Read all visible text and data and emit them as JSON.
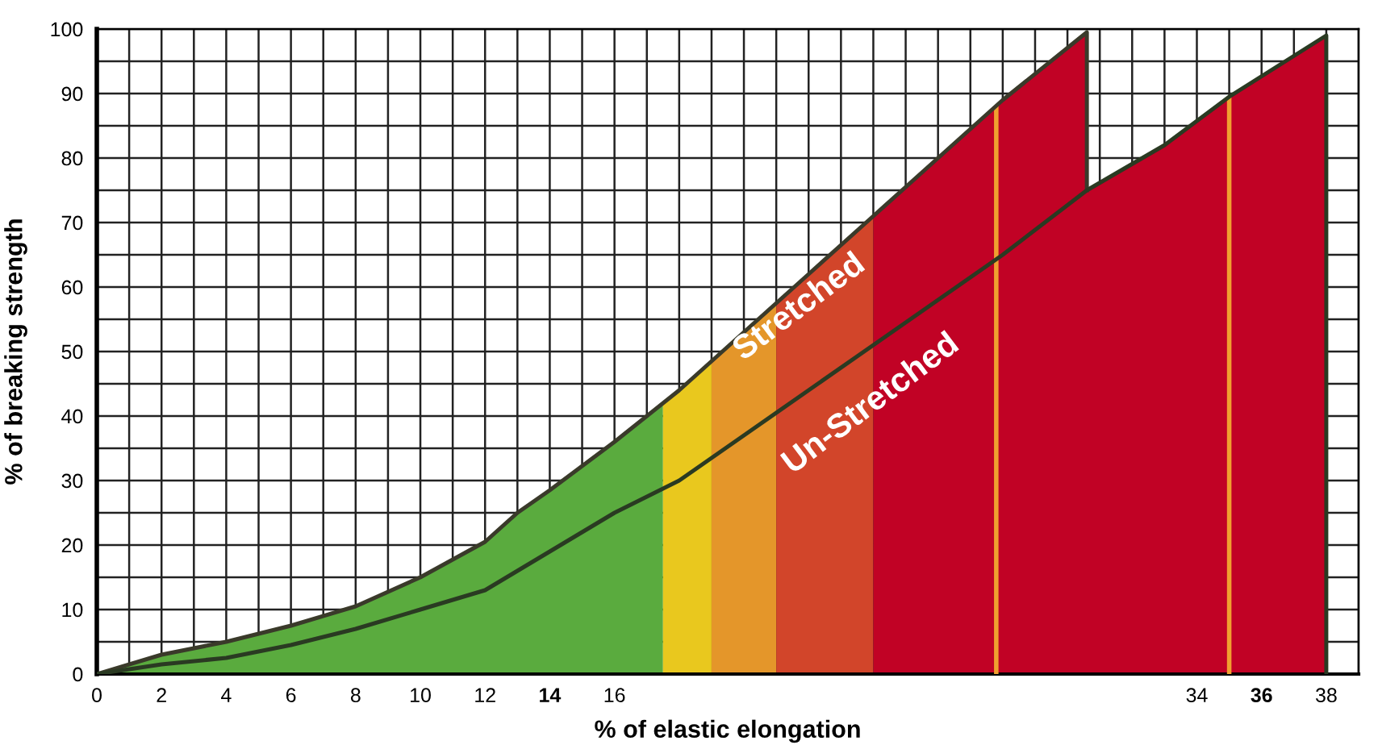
{
  "chart_data": {
    "type": "line",
    "xlabel": "% of elastic elongation",
    "ylabel": "% of breaking strength",
    "series": [
      {
        "name": "Stretched",
        "color": "#3a3a2a",
        "x": [
          0,
          2,
          4,
          6,
          8,
          10,
          12,
          13,
          14,
          16,
          18,
          20,
          22,
          24,
          26,
          28,
          30.6,
          30.6
        ],
        "values": [
          0,
          3,
          5,
          7.5,
          10.5,
          15,
          20.5,
          25,
          28.5,
          36,
          44,
          53,
          62,
          71,
          80,
          89,
          99.5,
          75
        ]
      },
      {
        "name": "Un-Stretched",
        "color": "#2a3a22",
        "x": [
          0,
          2,
          4,
          6,
          8,
          10,
          12,
          14,
          16,
          18,
          20,
          22,
          24,
          26,
          28,
          30.6,
          33,
          35,
          38,
          38
        ],
        "values": [
          0,
          1.5,
          2.5,
          4.5,
          7,
          10,
          13,
          19,
          25,
          30,
          37,
          44,
          51,
          58,
          65,
          75,
          82,
          89.5,
          99,
          0
        ]
      }
    ],
    "bands": [
      {
        "axis": "x",
        "from": 0,
        "to": 17.5,
        "color": "#5aab3e"
      },
      {
        "axis": "x",
        "from": 17.5,
        "to": 19,
        "color": "#e9c81e"
      },
      {
        "axis": "x",
        "from": 19,
        "to": 21,
        "color": "#e4962a"
      },
      {
        "axis": "x",
        "from": 21,
        "to": 24,
        "color": "#d2452a"
      },
      {
        "axis": "x",
        "from": 24,
        "to": 39,
        "color": "#c10225"
      }
    ],
    "ref_lines": [
      {
        "axis": "x",
        "value": 27.8,
        "color": "#f0a030"
      },
      {
        "axis": "x",
        "value": 35,
        "color": "#f0a030"
      }
    ],
    "xlim": [
      0,
      39
    ],
    "ylim": [
      0,
      100
    ],
    "xticks": [
      0,
      {
        "value": 1,
        "label": null
      },
      2,
      {
        "value": 3,
        "label": null
      },
      4,
      {
        "value": 5,
        "label": null
      },
      6,
      {
        "value": 7,
        "label": null
      },
      8,
      {
        "value": 9,
        "label": null
      },
      10,
      {
        "value": 11,
        "label": null
      },
      12,
      {
        "value": 13,
        "label": null
      },
      14,
      {
        "value": 15,
        "label": null
      },
      16,
      {
        "value": 17,
        "label": null
      },
      {
        "value": 18,
        "label": null
      },
      {
        "value": 19,
        "label": null
      },
      {
        "value": 20,
        "label": null
      },
      {
        "value": 21,
        "label": null
      },
      {
        "value": 22,
        "label": null
      },
      {
        "value": 23,
        "label": null
      },
      {
        "value": 24,
        "label": null
      },
      {
        "value": 25,
        "label": null
      },
      {
        "value": 26,
        "label": null
      },
      {
        "value": 27,
        "label": null
      },
      {
        "value": 28,
        "label": null
      },
      {
        "value": 29,
        "label": null
      },
      {
        "value": 30,
        "label": null
      },
      {
        "value": 31,
        "label": null
      },
      {
        "value": 32,
        "label": null
      },
      {
        "value": 33,
        "label": null
      },
      34,
      {
        "value": 35,
        "label": null
      },
      36,
      {
        "value": 37,
        "label": null
      },
      38,
      {
        "value": 39,
        "label": null
      }
    ],
    "yticks": [
      0,
      {
        "value": 5,
        "label": null
      },
      10,
      {
        "value": 15,
        "label": null
      },
      20,
      {
        "value": 25,
        "label": null
      },
      30,
      {
        "value": 35,
        "label": null
      },
      40,
      {
        "value": 45,
        "label": null
      },
      50,
      {
        "value": 55,
        "label": null
      },
      60,
      {
        "value": 65,
        "label": null
      },
      70,
      {
        "value": 75,
        "label": null
      },
      80,
      {
        "value": 85,
        "label": null
      },
      90,
      {
        "value": 95,
        "label": null
      },
      100
    ],
    "grid": true
  }
}
